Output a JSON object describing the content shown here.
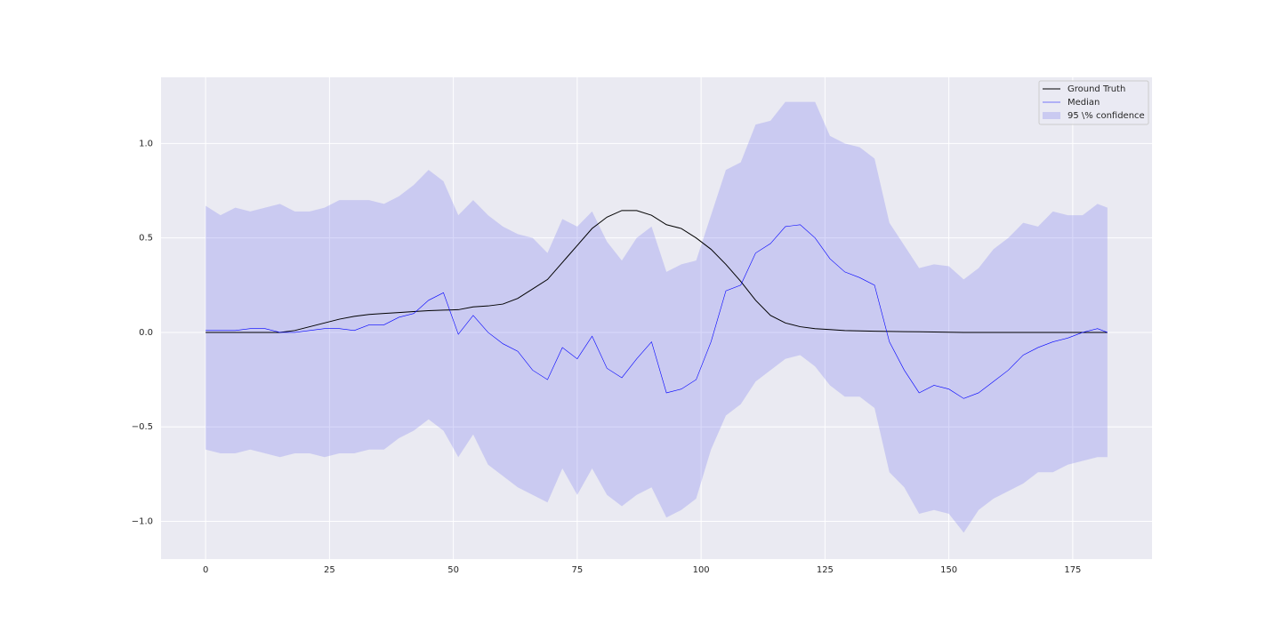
{
  "chart_data": {
    "type": "line",
    "x": [
      0,
      3,
      6,
      9,
      12,
      15,
      18,
      21,
      24,
      27,
      30,
      33,
      36,
      39,
      42,
      45,
      48,
      51,
      54,
      57,
      60,
      63,
      66,
      69,
      72,
      75,
      78,
      81,
      84,
      87,
      90,
      93,
      96,
      99,
      102,
      105,
      108,
      111,
      114,
      117,
      120,
      123,
      126,
      129,
      132,
      135,
      138,
      141,
      144,
      147,
      150,
      153,
      156,
      159,
      162,
      165,
      168,
      171,
      174,
      177,
      180,
      182
    ],
    "series": [
      {
        "name": "Ground Truth",
        "color": "#000000",
        "values": [
          0,
          0,
          0,
          0,
          0,
          0,
          0.01,
          0.03,
          0.05,
          0.07,
          0.085,
          0.095,
          0.1,
          0.105,
          0.11,
          0.115,
          0.118,
          0.12,
          0.135,
          0.14,
          0.15,
          0.18,
          0.23,
          0.28,
          0.37,
          0.46,
          0.55,
          0.61,
          0.645,
          0.645,
          0.62,
          0.57,
          0.55,
          0.5,
          0.44,
          0.36,
          0.27,
          0.17,
          0.09,
          0.05,
          0.03,
          0.02,
          0.015,
          0.01,
          0.008,
          0.006,
          0.005,
          0.004,
          0.003,
          0.002,
          0.001,
          0,
          0,
          0,
          0,
          0,
          0,
          0,
          0,
          0,
          0,
          0
        ]
      },
      {
        "name": "Median",
        "color": "#0000ff",
        "values": [
          0.01,
          0.01,
          0.01,
          0.02,
          0.02,
          0,
          0,
          0.01,
          0.02,
          0.02,
          0.01,
          0.04,
          0.04,
          0.08,
          0.1,
          0.17,
          0.21,
          -0.01,
          0.09,
          0,
          -0.06,
          -0.1,
          -0.2,
          -0.25,
          -0.08,
          -0.14,
          -0.02,
          -0.19,
          -0.24,
          -0.14,
          -0.05,
          -0.32,
          -0.3,
          -0.25,
          -0.05,
          0.22,
          0.25,
          0.42,
          0.47,
          0.56,
          0.57,
          0.5,
          0.39,
          0.32,
          0.29,
          0.25,
          -0.05,
          -0.2,
          -0.32,
          -0.28,
          -0.3,
          -0.35,
          -0.32,
          -0.26,
          -0.2,
          -0.12,
          -0.08,
          -0.05,
          -0.03,
          0,
          0.02,
          0
        ]
      },
      {
        "name": "95 \\% confidence",
        "color": "#8080ee",
        "upper": [
          0.67,
          0.62,
          0.66,
          0.64,
          0.66,
          0.68,
          0.64,
          0.64,
          0.66,
          0.7,
          0.7,
          0.7,
          0.68,
          0.72,
          0.78,
          0.86,
          0.8,
          0.62,
          0.7,
          0.62,
          0.56,
          0.52,
          0.5,
          0.42,
          0.6,
          0.56,
          0.64,
          0.48,
          0.38,
          0.5,
          0.56,
          0.32,
          0.36,
          0.38,
          0.62,
          0.86,
          0.9,
          1.1,
          1.12,
          1.22,
          1.22,
          1.22,
          1.04,
          1,
          0.98,
          0.92,
          0.58,
          0.46,
          0.34,
          0.36,
          0.35,
          0.28,
          0.34,
          0.44,
          0.5,
          0.58,
          0.56,
          0.64,
          0.62,
          0.62,
          0.68,
          0.66
        ],
        "lower": [
          -0.62,
          -0.64,
          -0.64,
          -0.62,
          -0.64,
          -0.66,
          -0.64,
          -0.64,
          -0.66,
          -0.64,
          -0.64,
          -0.62,
          -0.62,
          -0.56,
          -0.52,
          -0.46,
          -0.52,
          -0.66,
          -0.54,
          -0.7,
          -0.76,
          -0.82,
          -0.86,
          -0.9,
          -0.72,
          -0.86,
          -0.72,
          -0.86,
          -0.92,
          -0.86,
          -0.82,
          -0.98,
          -0.94,
          -0.88,
          -0.62,
          -0.44,
          -0.38,
          -0.26,
          -0.2,
          -0.14,
          -0.12,
          -0.18,
          -0.28,
          -0.34,
          -0.34,
          -0.4,
          -0.74,
          -0.82,
          -0.96,
          -0.94,
          -0.96,
          -1.06,
          -0.94,
          -0.88,
          -0.84,
          -0.8,
          -0.74,
          -0.74,
          -0.7,
          -0.68,
          -0.66,
          -0.66
        ]
      }
    ],
    "xlim": [
      -9,
      191
    ],
    "xticks": [
      0,
      25,
      50,
      75,
      100,
      125,
      150,
      175
    ],
    "ylim": [
      -1.2,
      1.35
    ],
    "yticks": [
      {
        "value": -1.0,
        "label": "−1.0"
      },
      {
        "value": -0.5,
        "label": "−0.5"
      },
      {
        "value": 0.0,
        "label": "0.0"
      },
      {
        "value": 0.5,
        "label": "0.5"
      },
      {
        "value": 1.0,
        "label": "1.0"
      }
    ],
    "grid": true,
    "legend": "upper right"
  }
}
